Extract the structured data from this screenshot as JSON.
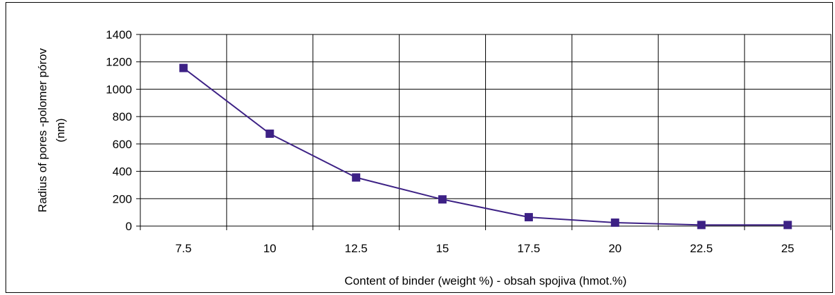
{
  "chart_data": {
    "type": "line",
    "title": "",
    "xlabel": "Content of binder (weight %) - obsah spojiva (hmot.%)",
    "ylabel_lines": [
      "Radius of pores -polomer pórov",
      "(nm)"
    ],
    "categories": [
      "7.5",
      "10",
      "12.5",
      "15",
      "17.5",
      "20",
      "22.5",
      "25"
    ],
    "y_ticks": [
      "0",
      "200",
      "400",
      "600",
      "800",
      "1000",
      "1200",
      "1400"
    ],
    "ylim": [
      0,
      1400
    ],
    "grid": true,
    "legend": "none",
    "series": [
      {
        "values": [
          1155,
          675,
          355,
          195,
          65,
          25,
          8,
          8
        ],
        "color": "#3d2185",
        "marker": "square"
      }
    ]
  }
}
